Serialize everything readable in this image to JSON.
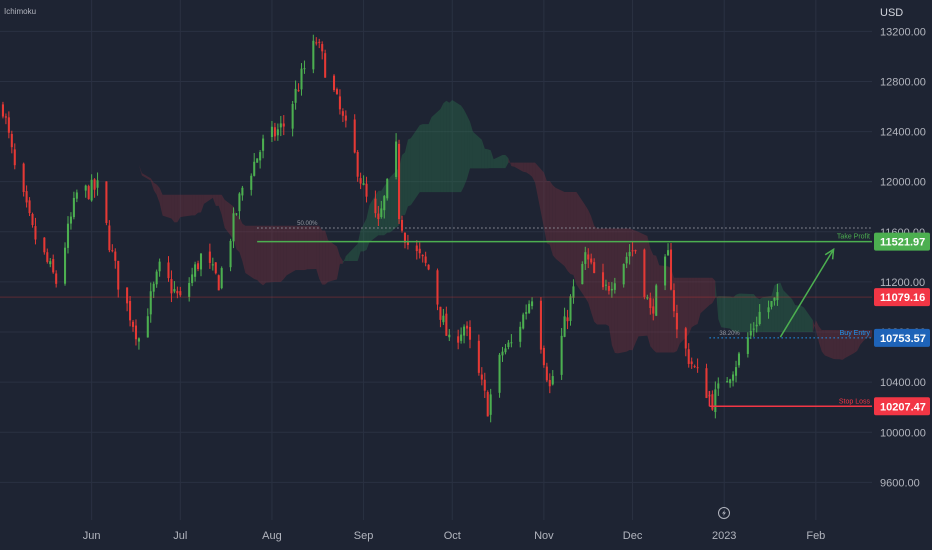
{
  "indicator_label": "Ichimoku",
  "colors": {
    "background": "#1e2433",
    "up": "#4caf50",
    "down": "#e53935",
    "cloud_bull": "#2e7d4f",
    "cloud_bear": "#8a3340",
    "take_profit": "#4caf50",
    "entry": "#2196f3",
    "stop": "#f23645",
    "text": "#b2b5be"
  },
  "chart_data": {
    "type": "candlestick",
    "title": "",
    "currency": "USD",
    "ylim": [
      9300,
      13450
    ],
    "y_ticks": [
      9600,
      10000,
      10400,
      10800,
      11200,
      11600,
      12000,
      12400,
      12800,
      13200
    ],
    "y_tick_labels": [
      "9600.00",
      "10000.00",
      "10400.00",
      "10800.00",
      "11200.00",
      "11600.00",
      "12000.00",
      "12400.00",
      "12800.00",
      "13200.00"
    ],
    "x_axis": {
      "start": "2022-05-01",
      "end": "2023-02-20",
      "tick_labels": [
        "Jun",
        "Jul",
        "Aug",
        "Sep",
        "Oct",
        "Nov",
        "Dec",
        "2023",
        "Feb"
      ],
      "tick_dates": [
        "2022-06-01",
        "2022-07-01",
        "2022-08-01",
        "2022-09-01",
        "2022-10-01",
        "2022-11-01",
        "2022-12-01",
        "2023-01-01",
        "2023-02-01"
      ]
    },
    "price_path": [
      [
        "2022-05-02",
        12600
      ],
      [
        "2022-05-06",
        12100
      ],
      [
        "2022-05-12",
        11600
      ],
      [
        "2022-05-20",
        11200
      ],
      [
        "2022-05-27",
        11900
      ],
      [
        "2022-06-03",
        11950
      ],
      [
        "2022-06-10",
        11200
      ],
      [
        "2022-06-17",
        10750
      ],
      [
        "2022-06-24",
        11300
      ],
      [
        "2022-07-01",
        11050
      ],
      [
        "2022-07-08",
        11400
      ],
      [
        "2022-07-14",
        11200
      ],
      [
        "2022-07-22",
        11950
      ],
      [
        "2022-07-29",
        12300
      ],
      [
        "2022-08-05",
        12450
      ],
      [
        "2022-08-12",
        12900
      ],
      [
        "2022-08-16",
        13120
      ],
      [
        "2022-08-22",
        12700
      ],
      [
        "2022-08-29",
        12200
      ],
      [
        "2022-09-02",
        11850
      ],
      [
        "2022-09-06",
        11650
      ],
      [
        "2022-09-12",
        12250
      ],
      [
        "2022-09-13",
        11750
      ],
      [
        "2022-09-16",
        11500
      ],
      [
        "2022-09-23",
        11300
      ],
      [
        "2022-09-30",
        10700
      ],
      [
        "2022-10-05",
        10850
      ],
      [
        "2022-10-13",
        10200
      ],
      [
        "2022-10-18",
        10650
      ],
      [
        "2022-10-21",
        10700
      ],
      [
        "2022-10-28",
        11100
      ],
      [
        "2022-11-03",
        10350
      ],
      [
        "2022-11-10",
        11050
      ],
      [
        "2022-11-15",
        11400
      ],
      [
        "2022-11-21",
        11100
      ],
      [
        "2022-11-30",
        11450
      ],
      [
        "2022-12-02",
        11460
      ],
      [
        "2022-12-07",
        10950
      ],
      [
        "2022-12-13",
        11400
      ],
      [
        "2022-12-16",
        10800
      ],
      [
        "2022-12-22",
        10500
      ],
      [
        "2022-12-28",
        10250
      ],
      [
        "2023-01-06",
        10600
      ],
      [
        "2023-01-13",
        10950
      ],
      [
        "2023-01-19",
        11050
      ]
    ],
    "levels": [
      {
        "name": "Take Profit",
        "value": 11521.97,
        "label": "11521.97"
      },
      {
        "name": "Buy Entry",
        "value": 10753.57,
        "label": "10753.57"
      },
      {
        "name": "Stop Loss",
        "value": 10207.47,
        "label": "10207.47"
      },
      {
        "name": "current",
        "value": 11079.16,
        "label": "11079.16"
      }
    ],
    "fib_levels": [
      {
        "label": "50.00%",
        "value": 11630
      },
      {
        "label": "38.20%",
        "value": 10753.57
      }
    ],
    "arrow": {
      "from": [
        "2023-01-20",
        10760
      ],
      "to": [
        "2023-02-07",
        11460
      ]
    }
  },
  "labels": {
    "take_profit": "Take Profit",
    "buy_entry": "Buy Entry",
    "stop_loss": "Stop Loss"
  }
}
